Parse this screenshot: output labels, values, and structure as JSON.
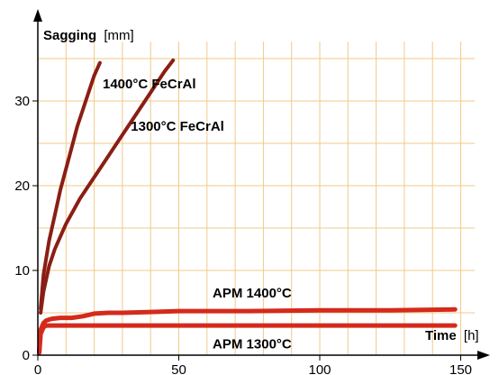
{
  "chart_data": {
    "type": "line",
    "title": "",
    "ylabel": {
      "name": "Sagging",
      "unit": "[mm]"
    },
    "xlabel": {
      "name": "Time",
      "unit": "[h]"
    },
    "xlim": [
      0,
      155
    ],
    "ylim": [
      0,
      37
    ],
    "xticks": [
      0,
      50,
      100,
      150
    ],
    "yticks": [
      0,
      10,
      20,
      30
    ],
    "xgrid": [
      0,
      10,
      20,
      30,
      40,
      50,
      60,
      70,
      80,
      90,
      100,
      110,
      120,
      130,
      140,
      150
    ],
    "ygrid": [
      5,
      10,
      15,
      20,
      25,
      30,
      35
    ],
    "grid": true,
    "series": [
      {
        "name": "1400°C FeCrAl",
        "color": "#8b1e14",
        "width": 4,
        "x": [
          1,
          2,
          4,
          6,
          8,
          10,
          12,
          14,
          16,
          18,
          20,
          22
        ],
        "y": [
          5.5,
          9.5,
          13.5,
          16.5,
          19.5,
          22.0,
          24.5,
          27.0,
          29.0,
          31.0,
          33.0,
          34.5
        ],
        "label_at": [
          23,
          31.5
        ]
      },
      {
        "name": "1300°C FeCrAl",
        "color": "#8b1e14",
        "width": 4,
        "x": [
          1,
          2,
          4,
          6,
          8,
          10,
          15,
          20,
          25,
          30,
          35,
          40,
          45,
          48
        ],
        "y": [
          5.0,
          7.5,
          10.5,
          12.5,
          14.0,
          15.5,
          18.5,
          21.0,
          23.5,
          26.0,
          28.5,
          31.0,
          33.5,
          34.8
        ],
        "label_at": [
          33,
          26.5
        ]
      },
      {
        "name": "APM 1400°C",
        "color": "#d42a1c",
        "width": 5,
        "x": [
          0.5,
          1,
          2,
          3,
          5,
          8,
          12,
          16,
          20,
          25,
          30,
          40,
          50,
          75,
          100,
          125,
          148
        ],
        "y": [
          0.5,
          3.0,
          3.8,
          4.1,
          4.3,
          4.4,
          4.4,
          4.6,
          4.9,
          5.0,
          5.0,
          5.1,
          5.2,
          5.2,
          5.3,
          5.3,
          5.4
        ],
        "label_at": [
          62,
          6.8
        ]
      },
      {
        "name": "APM 1300°C",
        "color": "#d42a1c",
        "width": 5,
        "x": [
          0.5,
          1,
          2,
          3,
          5,
          8,
          12,
          20,
          30,
          50,
          75,
          100,
          125,
          148
        ],
        "y": [
          0.3,
          2.5,
          3.3,
          3.5,
          3.5,
          3.5,
          3.5,
          3.5,
          3.5,
          3.5,
          3.5,
          3.5,
          3.5,
          3.5
        ],
        "label_at": [
          62,
          0.8
        ]
      }
    ]
  }
}
